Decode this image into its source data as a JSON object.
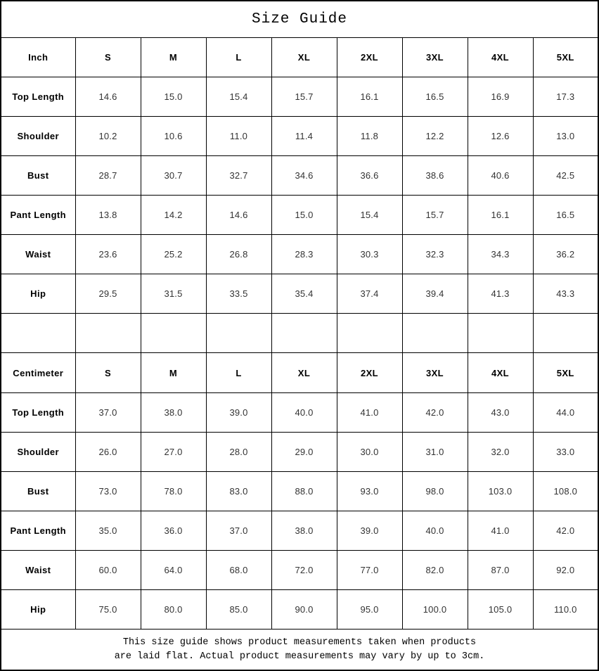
{
  "title": "Size Guide",
  "sections": [
    {
      "unit": "Inch",
      "sizes": [
        "S",
        "M",
        "L",
        "XL",
        "2XL",
        "3XL",
        "4XL",
        "5XL"
      ],
      "rows": [
        {
          "label": "Top Length",
          "values": [
            "14.6",
            "15.0",
            "15.4",
            "15.7",
            "16.1",
            "16.5",
            "16.9",
            "17.3"
          ]
        },
        {
          "label": "Shoulder",
          "values": [
            "10.2",
            "10.6",
            "11.0",
            "11.4",
            "11.8",
            "12.2",
            "12.6",
            "13.0"
          ]
        },
        {
          "label": "Bust",
          "values": [
            "28.7",
            "30.7",
            "32.7",
            "34.6",
            "36.6",
            "38.6",
            "40.6",
            "42.5"
          ]
        },
        {
          "label": "Pant Length",
          "values": [
            "13.8",
            "14.2",
            "14.6",
            "15.0",
            "15.4",
            "15.7",
            "16.1",
            "16.5"
          ]
        },
        {
          "label": "Waist",
          "values": [
            "23.6",
            "25.2",
            "26.8",
            "28.3",
            "30.3",
            "32.3",
            "34.3",
            "36.2"
          ]
        },
        {
          "label": "Hip",
          "values": [
            "29.5",
            "31.5",
            "33.5",
            "35.4",
            "37.4",
            "39.4",
            "41.3",
            "43.3"
          ]
        }
      ]
    },
    {
      "unit": "Centimeter",
      "sizes": [
        "S",
        "M",
        "L",
        "XL",
        "2XL",
        "3XL",
        "4XL",
        "5XL"
      ],
      "rows": [
        {
          "label": "Top Length",
          "values": [
            "37.0",
            "38.0",
            "39.0",
            "40.0",
            "41.0",
            "42.0",
            "43.0",
            "44.0"
          ]
        },
        {
          "label": "Shoulder",
          "values": [
            "26.0",
            "27.0",
            "28.0",
            "29.0",
            "30.0",
            "31.0",
            "32.0",
            "33.0"
          ]
        },
        {
          "label": "Bust",
          "values": [
            "73.0",
            "78.0",
            "83.0",
            "88.0",
            "93.0",
            "98.0",
            "103.0",
            "108.0"
          ]
        },
        {
          "label": "Pant Length",
          "values": [
            "35.0",
            "36.0",
            "37.0",
            "38.0",
            "39.0",
            "40.0",
            "41.0",
            "42.0"
          ]
        },
        {
          "label": "Waist",
          "values": [
            "60.0",
            "64.0",
            "68.0",
            "72.0",
            "77.0",
            "82.0",
            "87.0",
            "92.0"
          ]
        },
        {
          "label": "Hip",
          "values": [
            "75.0",
            "80.0",
            "85.0",
            "90.0",
            "95.0",
            "100.0",
            "105.0",
            "110.0"
          ]
        }
      ]
    }
  ],
  "footer": {
    "line1": "This size guide shows product measurements taken when products",
    "line2": "are laid flat. Actual product measurements may vary by up to 3cm."
  },
  "colors": {
    "border": "#000000",
    "label_text": "#000000",
    "value_text": "#333333",
    "background": "#ffffff"
  }
}
